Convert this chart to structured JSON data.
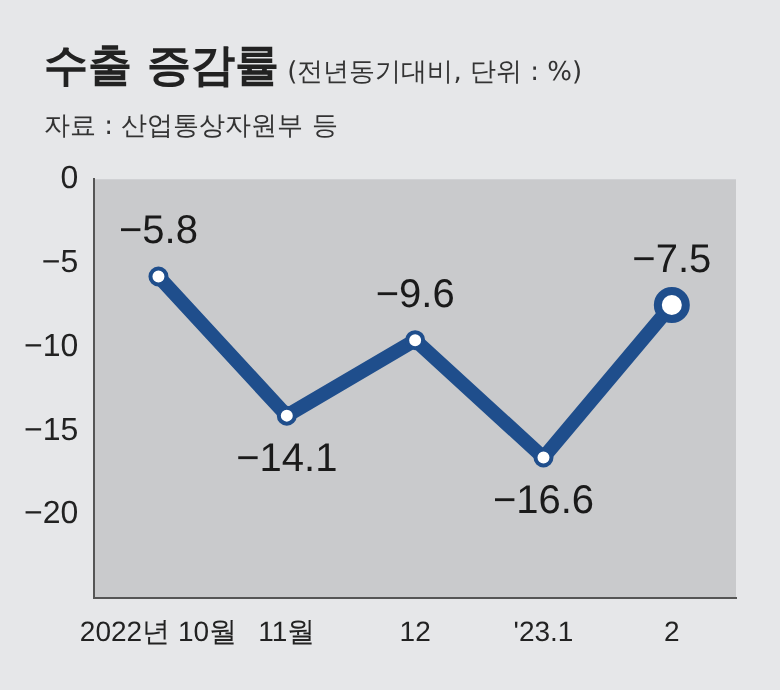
{
  "chart_data": {
    "type": "line",
    "title": "수출 증감률",
    "subtitle": "(전년동기대비, 단위 : %)",
    "annotations": [
      "자료 : 산업통상자원부 등"
    ],
    "categories": [
      "2022년 10월",
      "11월",
      "12",
      "'23.1",
      "2"
    ],
    "series": [
      {
        "color": "#1f4e8c",
        "values": [
          -5.8,
          -14.1,
          -9.6,
          -16.6,
          -7.5
        ]
      }
    ],
    "ylim": [
      -25,
      0
    ],
    "yticks": [
      0,
      -5,
      -10,
      -15,
      -20
    ],
    "grid": false,
    "legend": false,
    "marker": "circle",
    "line_style": "solid",
    "data_labels": true
  }
}
